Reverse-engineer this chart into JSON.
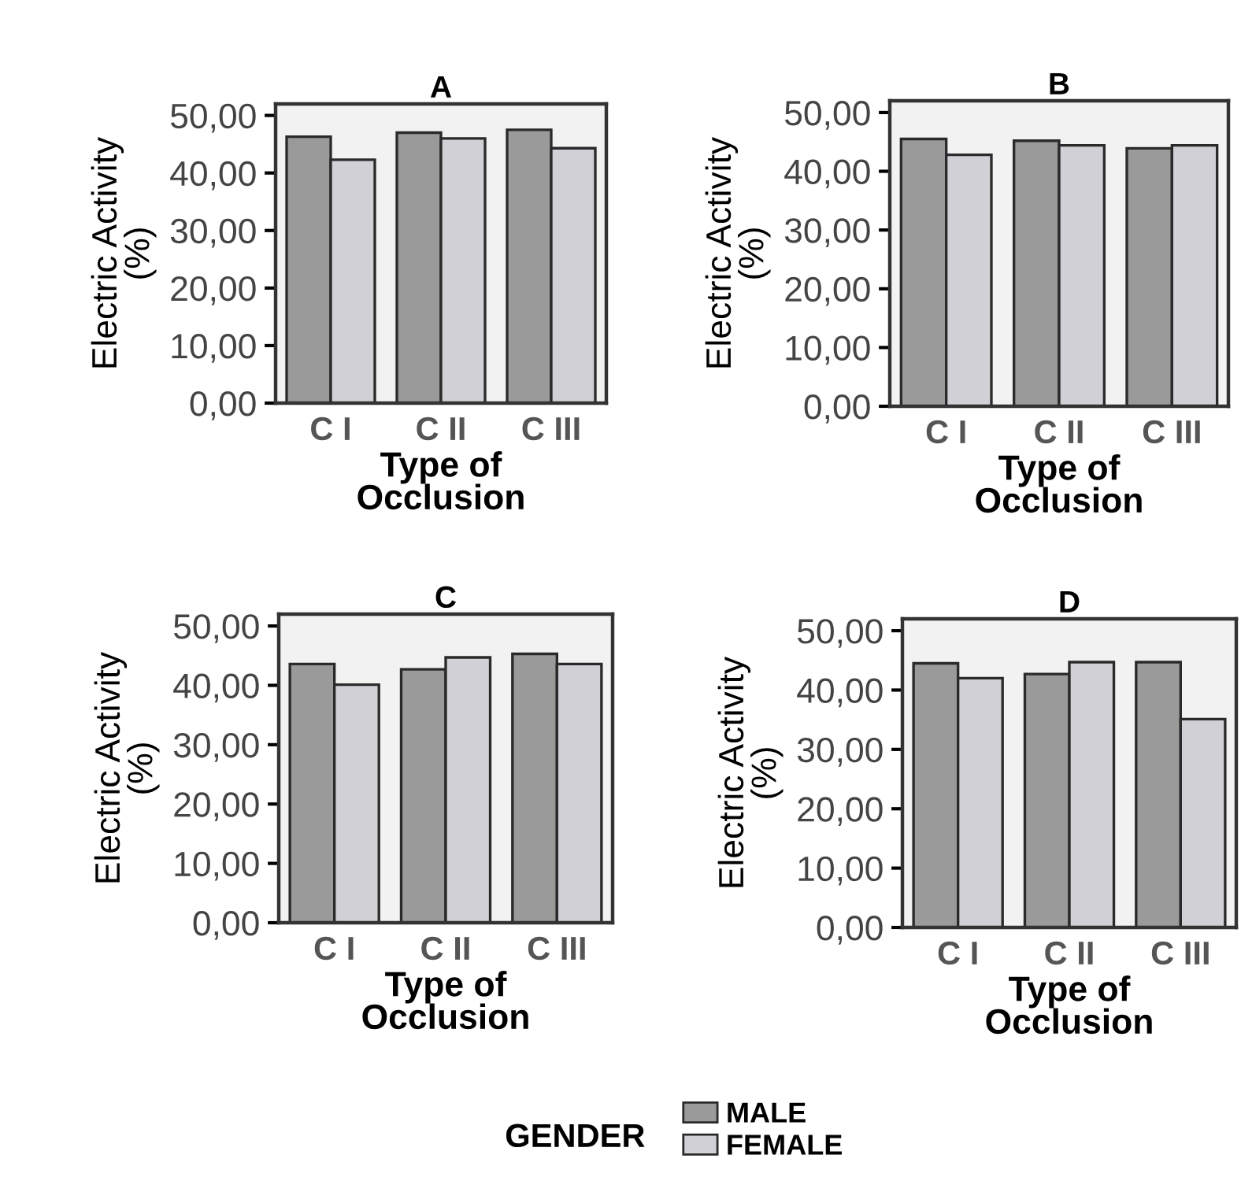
{
  "chart_data": [
    {
      "type": "bar",
      "title": "A",
      "xlabel": "Type of\nOcclusion",
      "ylabel": "Electric Activity\n(%)",
      "categories": [
        "C I",
        "C II",
        "C III"
      ],
      "ylim": [
        0,
        52
      ],
      "yticks": [
        {
          "value": 0,
          "label": "0,00"
        },
        {
          "value": 10,
          "label": "10,00"
        },
        {
          "value": 20,
          "label": "20,00"
        },
        {
          "value": 30,
          "label": "30,00"
        },
        {
          "value": 40,
          "label": "40,00"
        },
        {
          "value": 50,
          "label": "50,00"
        }
      ],
      "grid": false,
      "legend": false,
      "series": [
        {
          "color": "#9a9a9a",
          "values": [
            46.3,
            47.0,
            47.5
          ]
        },
        {
          "color": "#d0d0d6",
          "values": [
            42.3,
            46.0,
            44.3
          ]
        }
      ]
    },
    {
      "type": "bar",
      "title": "B",
      "xlabel": "Type of\nOcclusion",
      "ylabel": "Electric Activity\n(%)",
      "categories": [
        "C I",
        "C II",
        "C III"
      ],
      "ylim": [
        0,
        52
      ],
      "yticks": [
        {
          "value": 0,
          "label": "0,00"
        },
        {
          "value": 10,
          "label": "10,00"
        },
        {
          "value": 20,
          "label": "20,00"
        },
        {
          "value": 30,
          "label": "30,00"
        },
        {
          "value": 40,
          "label": "40,00"
        },
        {
          "value": 50,
          "label": "50,00"
        }
      ],
      "grid": false,
      "legend": false,
      "series": [
        {
          "color": "#9a9a9a",
          "values": [
            45.5,
            45.2,
            43.9
          ]
        },
        {
          "color": "#d0d0d6",
          "values": [
            42.8,
            44.4,
            44.4
          ]
        }
      ]
    },
    {
      "type": "bar",
      "title": "C",
      "xlabel": "Type of\nOcclusion",
      "ylabel": "Electric Activity\n(%)",
      "categories": [
        "C I",
        "C II",
        "C III"
      ],
      "ylim": [
        0,
        52
      ],
      "yticks": [
        {
          "value": 0,
          "label": "0,00"
        },
        {
          "value": 10,
          "label": "10,00"
        },
        {
          "value": 20,
          "label": "20,00"
        },
        {
          "value": 30,
          "label": "30,00"
        },
        {
          "value": 40,
          "label": "40,00"
        },
        {
          "value": 50,
          "label": "50,00"
        }
      ],
      "grid": false,
      "legend": false,
      "series": [
        {
          "color": "#9a9a9a",
          "values": [
            43.6,
            42.7,
            45.3
          ]
        },
        {
          "color": "#d0d0d6",
          "values": [
            40.1,
            44.7,
            43.6
          ]
        }
      ]
    },
    {
      "type": "bar",
      "title": "D",
      "xlabel": "Type of\nOcclusion",
      "ylabel": "Electric Activity\n(%)",
      "categories": [
        "C I",
        "C II",
        "C III"
      ],
      "ylim": [
        0,
        52
      ],
      "yticks": [
        {
          "value": 0,
          "label": "0,00"
        },
        {
          "value": 10,
          "label": "10,00"
        },
        {
          "value": 20,
          "label": "20,00"
        },
        {
          "value": 30,
          "label": "30,00"
        },
        {
          "value": 40,
          "label": "40,00"
        },
        {
          "value": 50,
          "label": "50,00"
        }
      ],
      "grid": false,
      "legend": "bottom",
      "legend_title": "GENDER",
      "series": [
        {
          "name": "MALE",
          "color": "#9a9a9a",
          "values": [
            44.5,
            42.7,
            44.7
          ]
        },
        {
          "name": "FEMALE",
          "color": "#d0d0d6",
          "values": [
            42.0,
            44.7,
            35.1
          ]
        }
      ]
    }
  ]
}
